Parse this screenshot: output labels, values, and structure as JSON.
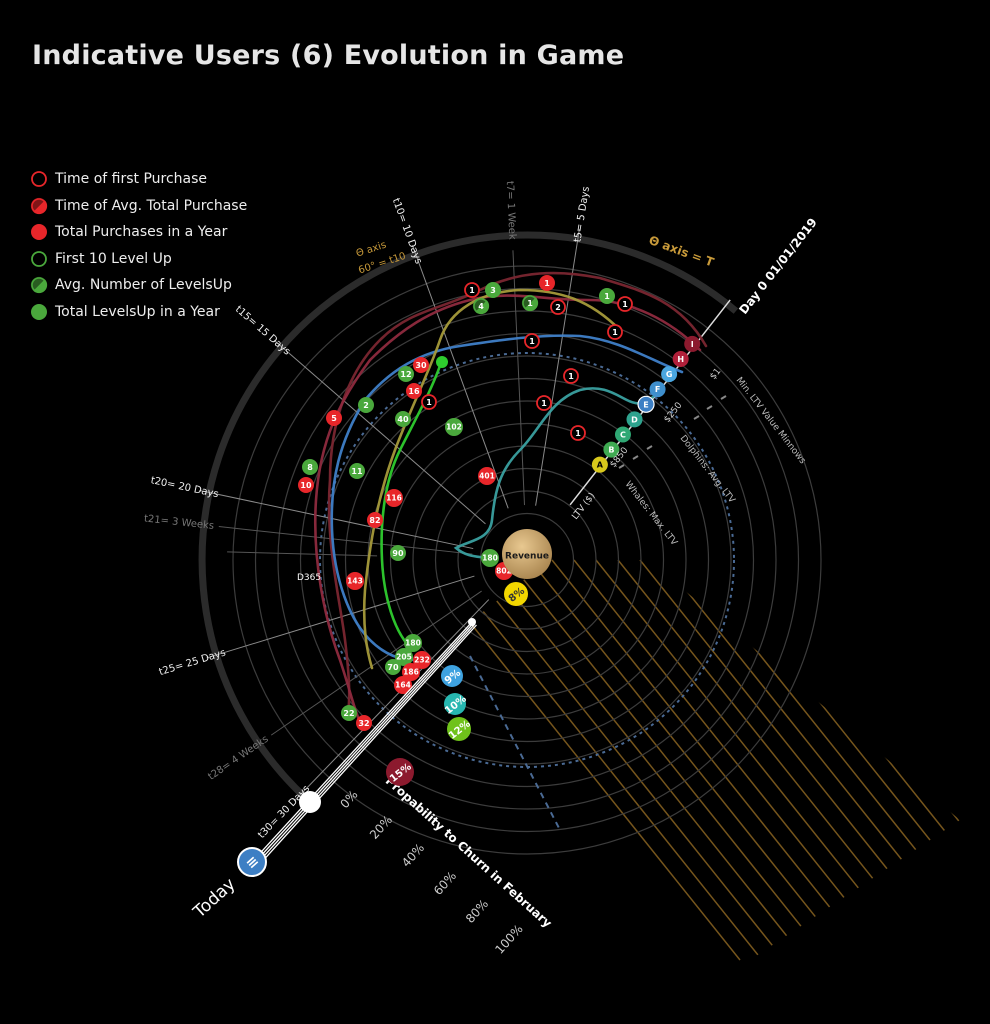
{
  "title": "Indicative Users (6) Evolution in Game",
  "legend": [
    {
      "label": "Time of first Purchase",
      "icon": "ring-red-icon",
      "kind": "ring",
      "color": "#e8262a"
    },
    {
      "label": "Time of Avg. Total Purchase",
      "icon": "half-red-icon",
      "kind": "half",
      "color": "#e8262a"
    },
    {
      "label": "Total Purchases in a Year",
      "icon": "dot-red-icon",
      "kind": "dot",
      "color": "#e8262a"
    },
    {
      "label": "First 10 Level Up",
      "icon": "ring-green-icon",
      "kind": "ring",
      "color": "#4aa83c"
    },
    {
      "label": "Avg. Number of LevelsUp",
      "icon": "half-green-icon",
      "kind": "half",
      "color": "#4aa83c"
    },
    {
      "label": "Total LevelsUp in a Year",
      "icon": "dot-green-icon",
      "kind": "dot",
      "color": "#4aa83c"
    }
  ],
  "chart_data": {
    "type": "radial",
    "center_label": "Revenue",
    "start_label": "Day 0 01/01/2019",
    "end_label": "Today",
    "end_badge": "≡",
    "theta_axis_label": "Θ axis = T",
    "theta_axis_sub": [
      "Θ axis",
      "60° = t10"
    ],
    "radius_label": "LTV ($)",
    "d365_label": "D365",
    "time_ticks": [
      {
        "label": "t5= 5 Days",
        "days": 5,
        "dim": false
      },
      {
        "label": "t7= 1 Week",
        "days": 7,
        "dim": true
      },
      {
        "label": "t10= 10 Days",
        "days": 10,
        "dim": false
      },
      {
        "label": "t15= 15 Days",
        "days": 15,
        "dim": false
      },
      {
        "label": "t20= 20 Days",
        "days": 20,
        "dim": false
      },
      {
        "label": "t21= 3 Weeks",
        "days": 21,
        "dim": true
      },
      {
        "label": "t25= 25 Days",
        "days": 25,
        "dim": false
      },
      {
        "label": "t28= 4 Weeks",
        "days": 28,
        "dim": true
      },
      {
        "label": "t30= 30 Days",
        "days": 30,
        "dim": false
      }
    ],
    "ltv_markers": [
      {
        "label": "$1",
        "ring": 0.62
      },
      {
        "label": "$250",
        "ring": 0.38
      },
      {
        "label": "$850",
        "ring": 0.2
      }
    ],
    "segments": [
      {
        "label": "Min. LTV Value Minnows",
        "ring": 0.62
      },
      {
        "label": "Dolphins: Avg. LTV",
        "ring": 0.38
      },
      {
        "label": "Whales: Max. LTV",
        "ring": 0.2
      }
    ],
    "users": [
      {
        "id": "A",
        "color": "#d8c81c",
        "ring": 0.26,
        "churn": 8,
        "churn_label": "8%"
      },
      {
        "id": "B",
        "color": "#3faa52",
        "ring": 0.3
      },
      {
        "id": "C",
        "color": "#2fa874",
        "ring": 0.34
      },
      {
        "id": "D",
        "color": "#2ea38e",
        "ring": 0.38
      },
      {
        "id": "E",
        "color": "#3d7fc4",
        "ring": 0.42
      },
      {
        "id": "F",
        "color": "#3f8fcd",
        "ring": 0.46
      },
      {
        "id": "G",
        "color": "#4aa6e0",
        "ring": 0.5
      },
      {
        "id": "H",
        "color": "#b0203a",
        "ring": 0.54
      },
      {
        "id": "I",
        "color": "#8c1a2e",
        "ring": 0.58
      }
    ],
    "churn": {
      "title": "Propability to Churn in February",
      "ticks": [
        "0%",
        "20%",
        "40%",
        "60%",
        "80%",
        "100%"
      ],
      "points": [
        {
          "label": "8%",
          "value": 8,
          "color": "#f2d600"
        },
        {
          "label": "9%",
          "value": 9,
          "color": "#3ea2e0"
        },
        {
          "label": "10%",
          "value": 10,
          "color": "#27b7b0"
        },
        {
          "label": "12%",
          "value": 12,
          "color": "#6fc21a"
        },
        {
          "label": "15%",
          "value": 15,
          "color": "#8c1a2e"
        }
      ]
    },
    "event_markers": [
      {
        "text": "1",
        "type": "ring",
        "color": "#e8262a"
      },
      {
        "text": "3",
        "type": "dot",
        "color": "#4aa83c"
      },
      {
        "text": "1",
        "type": "dot",
        "color": "#e8262a"
      },
      {
        "text": "4",
        "type": "half",
        "color": "#4aa83c"
      },
      {
        "text": "1",
        "type": "half",
        "color": "#4aa83c"
      },
      {
        "text": "2",
        "type": "ring",
        "color": "#e8262a"
      },
      {
        "text": "1",
        "type": "dot",
        "color": "#4aa83c"
      },
      {
        "text": "1",
        "type": "ring",
        "color": "#e8262a"
      },
      {
        "text": "1",
        "type": "ring",
        "color": "#e8262a"
      },
      {
        "text": "1",
        "type": "ring",
        "color": "#e8262a"
      },
      {
        "text": "1",
        "type": "ring",
        "color": "#e8262a"
      },
      {
        "text": "1",
        "type": "ring",
        "color": "#e8262a"
      },
      {
        "text": "1",
        "type": "ring",
        "color": "#e8262a"
      },
      {
        "text": "30",
        "type": "dot",
        "color": "#e8262a"
      },
      {
        "text": "12",
        "type": "dot",
        "color": "#4aa83c"
      },
      {
        "text": "16",
        "type": "dot",
        "color": "#e8262a"
      },
      {
        "text": "1",
        "type": "ring",
        "color": "#e8262a"
      },
      {
        "text": "2",
        "type": "dot",
        "color": "#4aa83c"
      },
      {
        "text": "40",
        "type": "dot",
        "color": "#4aa83c"
      },
      {
        "text": "5",
        "type": "dot",
        "color": "#e8262a"
      },
      {
        "text": "102",
        "type": "dot",
        "color": "#4aa83c"
      },
      {
        "text": "8",
        "type": "dot",
        "color": "#4aa83c"
      },
      {
        "text": "10",
        "type": "dot",
        "color": "#e8262a"
      },
      {
        "text": "11",
        "type": "dot",
        "color": "#4aa83c"
      },
      {
        "text": "401",
        "type": "dot",
        "color": "#e8262a"
      },
      {
        "text": "116",
        "type": "dot",
        "color": "#e8262a"
      },
      {
        "text": "82",
        "type": "dot",
        "color": "#e8262a"
      },
      {
        "text": "90",
        "type": "dot",
        "color": "#4aa83c"
      },
      {
        "text": "180",
        "type": "dot",
        "color": "#4aa83c"
      },
      {
        "text": "802",
        "type": "dot",
        "color": "#e8262a"
      },
      {
        "text": "143",
        "type": "dot",
        "color": "#e8262a"
      },
      {
        "text": "180",
        "type": "dot",
        "color": "#4aa83c"
      },
      {
        "text": "205",
        "type": "dot",
        "color": "#4aa83c"
      },
      {
        "text": "232",
        "type": "dot",
        "color": "#e8262a"
      },
      {
        "text": "70",
        "type": "dot",
        "color": "#4aa83c"
      },
      {
        "text": "186",
        "type": "dot",
        "color": "#e8262a"
      },
      {
        "text": "164",
        "type": "dot",
        "color": "#e8262a"
      },
      {
        "text": "22",
        "type": "dot",
        "color": "#4aa83c"
      },
      {
        "text": "32",
        "type": "dot",
        "color": "#e8262a"
      }
    ],
    "series": [
      {
        "name": "brown-red",
        "color": "#7a2630"
      },
      {
        "name": "maroon",
        "color": "#8e2a3e"
      },
      {
        "name": "blue",
        "color": "#3f7fc8"
      },
      {
        "name": "teal",
        "color": "#3aa0a0"
      },
      {
        "name": "olive",
        "color": "#a59a3a"
      },
      {
        "name": "green",
        "color": "#2ecc2e"
      }
    ]
  }
}
